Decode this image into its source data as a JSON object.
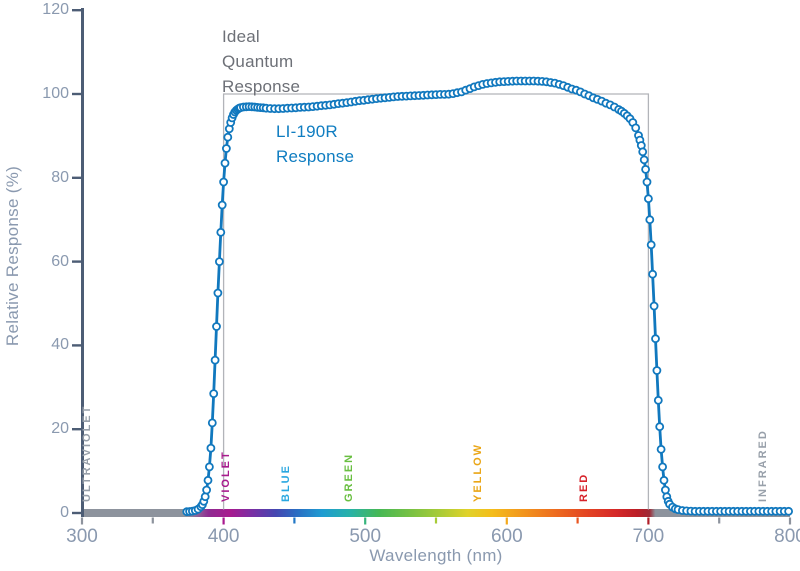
{
  "chart_data": {
    "type": "line",
    "title": "",
    "xlabel": "Wavelength (nm)",
    "ylabel": "Relative Response (%)",
    "xlim": [
      300,
      800
    ],
    "ylim": [
      0,
      120
    ],
    "grid": false,
    "legend_position": "annotations-inside-plot",
    "axis_color": "#4d5d75",
    "tick_label_color": "#8a99af",
    "y_ticks": [
      0,
      20,
      40,
      60,
      80,
      100,
      120
    ],
    "x_major_ticks": [
      300,
      400,
      500,
      600,
      700,
      800
    ],
    "x_minor_ticks": [
      350,
      450,
      550,
      650,
      750
    ],
    "x_tick_colors": {
      "300": "#8d939d",
      "350": "#8d939d",
      "400": "#a81a8e",
      "450": "#2277c6",
      "500": "#37b57d",
      "550": "#a7cb37",
      "600": "#f4a91c",
      "650": "#e9541f",
      "700": "#b01e27",
      "750": "#8d939d",
      "800": "#8d939d"
    },
    "ideal_response": {
      "label_lines": [
        "Ideal",
        "Quantum",
        "Response"
      ],
      "label_color": "#6d7077",
      "x_range": [
        400,
        700
      ],
      "y_value": 100,
      "line_color": "#b2b4b9"
    },
    "li190r": {
      "label_lines": [
        "LI-190R",
        "Response"
      ],
      "label_color": "#0f7dc1",
      "line_color": "#1178be",
      "marker": "open-circle",
      "marker_fill": "#ffffff",
      "points": [
        [
          374,
          0.3
        ],
        [
          376,
          0.35
        ],
        [
          378,
          0.45
        ],
        [
          380,
          0.6
        ],
        [
          382,
          0.9
        ],
        [
          384,
          1.5
        ],
        [
          385,
          2
        ],
        [
          386,
          2.8
        ],
        [
          387,
          3.9
        ],
        [
          388,
          5.5
        ],
        [
          389,
          7.8
        ],
        [
          390,
          11
        ],
        [
          391,
          15.5
        ],
        [
          392,
          21.5
        ],
        [
          393,
          28.5
        ],
        [
          394,
          36.5
        ],
        [
          395,
          44.5
        ],
        [
          396,
          52.5
        ],
        [
          397,
          60
        ],
        [
          398,
          67
        ],
        [
          399,
          73.5
        ],
        [
          400,
          79
        ],
        [
          401,
          83.5
        ],
        [
          402,
          87
        ],
        [
          403,
          89.7
        ],
        [
          404,
          91.7
        ],
        [
          405,
          93.2
        ],
        [
          406,
          94.3
        ],
        [
          407,
          95.1
        ],
        [
          408,
          95.7
        ],
        [
          409,
          96.1
        ],
        [
          410,
          96.4
        ],
        [
          411,
          96.6
        ],
        [
          412,
          96.75
        ],
        [
          414,
          96.9
        ],
        [
          416,
          96.95
        ],
        [
          418,
          97
        ],
        [
          420,
          96.95
        ],
        [
          422,
          96.9
        ],
        [
          424,
          96.8
        ],
        [
          426,
          96.75
        ],
        [
          428,
          96.7
        ],
        [
          430,
          96.6
        ],
        [
          433,
          96.55
        ],
        [
          436,
          96.5
        ],
        [
          439,
          96.5
        ],
        [
          442,
          96.55
        ],
        [
          445,
          96.6
        ],
        [
          448,
          96.65
        ],
        [
          451,
          96.7
        ],
        [
          454,
          96.8
        ],
        [
          457,
          96.85
        ],
        [
          460,
          96.9
        ],
        [
          463,
          97
        ],
        [
          466,
          97.1
        ],
        [
          469,
          97.2
        ],
        [
          472,
          97.3
        ],
        [
          475,
          97.4
        ],
        [
          478,
          97.55
        ],
        [
          481,
          97.7
        ],
        [
          484,
          97.8
        ],
        [
          487,
          97.95
        ],
        [
          490,
          98.1
        ],
        [
          493,
          98.25
        ],
        [
          496,
          98.4
        ],
        [
          499,
          98.5
        ],
        [
          502,
          98.65
        ],
        [
          505,
          98.75
        ],
        [
          508,
          98.9
        ],
        [
          511,
          99
        ],
        [
          514,
          99.1
        ],
        [
          517,
          99.2
        ],
        [
          520,
          99.3
        ],
        [
          523,
          99.4
        ],
        [
          526,
          99.45
        ],
        [
          529,
          99.5
        ],
        [
          532,
          99.55
        ],
        [
          535,
          99.6
        ],
        [
          538,
          99.65
        ],
        [
          541,
          99.7
        ],
        [
          544,
          99.75
        ],
        [
          547,
          99.8
        ],
        [
          550,
          99.85
        ],
        [
          553,
          99.9
        ],
        [
          556,
          99.9
        ],
        [
          559,
          99.95
        ],
        [
          562,
          100.1
        ],
        [
          565,
          100.3
        ],
        [
          568,
          100.5
        ],
        [
          571,
          100.9
        ],
        [
          574,
          101.3
        ],
        [
          577,
          101.7
        ],
        [
          580,
          102
        ],
        [
          583,
          102.3
        ],
        [
          586,
          102.5
        ],
        [
          589,
          102.65
        ],
        [
          592,
          102.8
        ],
        [
          595,
          102.9
        ],
        [
          598,
          102.95
        ],
        [
          601,
          103
        ],
        [
          604,
          103.05
        ],
        [
          607,
          103.1
        ],
        [
          610,
          103.1
        ],
        [
          613,
          103.1
        ],
        [
          616,
          103.1
        ],
        [
          619,
          103.1
        ],
        [
          622,
          103.05
        ],
        [
          625,
          103
        ],
        [
          628,
          102.9
        ],
        [
          631,
          102.75
        ],
        [
          634,
          102.6
        ],
        [
          637,
          102.3
        ],
        [
          640,
          102
        ],
        [
          643,
          101.6
        ],
        [
          646,
          101.2
        ],
        [
          649,
          100.9
        ],
        [
          652,
          100.5
        ],
        [
          655,
          100
        ],
        [
          658,
          99.6
        ],
        [
          661,
          99.1
        ],
        [
          664,
          98.7
        ],
        [
          667,
          98.3
        ],
        [
          670,
          97.8
        ],
        [
          673,
          97.4
        ],
        [
          676,
          96.9
        ],
        [
          679,
          96.3
        ],
        [
          681,
          95.9
        ],
        [
          683,
          95.4
        ],
        [
          685,
          94.8
        ],
        [
          687,
          94.1
        ],
        [
          689,
          93.2
        ],
        [
          691,
          91.9
        ],
        [
          693,
          90.1
        ],
        [
          694,
          89
        ],
        [
          695,
          87.7
        ],
        [
          696,
          86.2
        ],
        [
          697,
          84.3
        ],
        [
          698,
          82
        ],
        [
          699,
          79
        ],
        [
          700,
          75
        ],
        [
          701,
          70
        ],
        [
          702,
          64
        ],
        [
          703,
          57
        ],
        [
          704,
          49.4
        ],
        [
          705,
          41.6
        ],
        [
          706,
          34
        ],
        [
          707,
          26.9
        ],
        [
          708,
          20.6
        ],
        [
          709,
          15.2
        ],
        [
          710,
          11
        ],
        [
          711,
          7.8
        ],
        [
          712,
          5.5
        ],
        [
          713,
          3.9
        ],
        [
          714,
          2.8
        ],
        [
          715,
          2.1
        ],
        [
          717,
          1.4
        ],
        [
          719,
          1
        ],
        [
          721,
          0.8
        ],
        [
          724,
          0.6
        ],
        [
          727,
          0.5
        ],
        [
          730,
          0.45
        ],
        [
          733,
          0.4
        ],
        [
          736,
          0.4
        ],
        [
          739,
          0.4
        ],
        [
          742,
          0.4
        ],
        [
          745,
          0.4
        ],
        [
          748,
          0.4
        ],
        [
          751,
          0.4
        ],
        [
          754,
          0.4
        ],
        [
          757,
          0.4
        ],
        [
          760,
          0.4
        ],
        [
          763,
          0.4
        ],
        [
          766,
          0.4
        ],
        [
          769,
          0.4
        ],
        [
          772,
          0.4
        ],
        [
          775,
          0.4
        ],
        [
          778,
          0.4
        ],
        [
          781,
          0.4
        ],
        [
          784,
          0.4
        ],
        [
          787,
          0.4
        ],
        [
          790,
          0.4
        ],
        [
          793,
          0.4
        ],
        [
          796,
          0.4
        ],
        [
          799,
          0.4
        ]
      ]
    },
    "spectrum_band": {
      "gradient_stops": [
        [
          0,
          "#8d939d"
        ],
        [
          15,
          "#8d939d"
        ],
        [
          18,
          "#8e2b91"
        ],
        [
          21,
          "#a81a8e"
        ],
        [
          24,
          "#7b2ea3"
        ],
        [
          27.5,
          "#4547b1"
        ],
        [
          30.5,
          "#2a6ec3"
        ],
        [
          34,
          "#1f9cd2"
        ],
        [
          38,
          "#28b2a7"
        ],
        [
          42,
          "#46b855"
        ],
        [
          46,
          "#72c045"
        ],
        [
          50.5,
          "#a7cb37"
        ],
        [
          54.5,
          "#e0d22a"
        ],
        [
          58,
          "#f4bd1b"
        ],
        [
          62.5,
          "#f2941d"
        ],
        [
          67,
          "#ed6b1f"
        ],
        [
          71.5,
          "#e34323"
        ],
        [
          75.5,
          "#d52828"
        ],
        [
          78.5,
          "#bb1e27"
        ],
        [
          80.2,
          "#9e2936"
        ],
        [
          81,
          "#8d939d"
        ],
        [
          100,
          "#8d939d"
        ]
      ],
      "labels": [
        {
          "text": "ULTRAVIOLET",
          "nm": 313,
          "color": "#98a0aa"
        },
        {
          "text": "VIOLET",
          "nm": 411,
          "color": "#a81b8d"
        },
        {
          "text": "BLUE",
          "nm": 453,
          "color": "#29a7e0"
        },
        {
          "text": "GREEN",
          "nm": 498,
          "color": "#69bf41"
        },
        {
          "text": "YELLOW",
          "nm": 589,
          "color": "#eaa617"
        },
        {
          "text": "RED",
          "nm": 664,
          "color": "#d7232b"
        },
        {
          "text": "INFRARED",
          "nm": 790,
          "color": "#98a0aa"
        }
      ]
    }
  }
}
